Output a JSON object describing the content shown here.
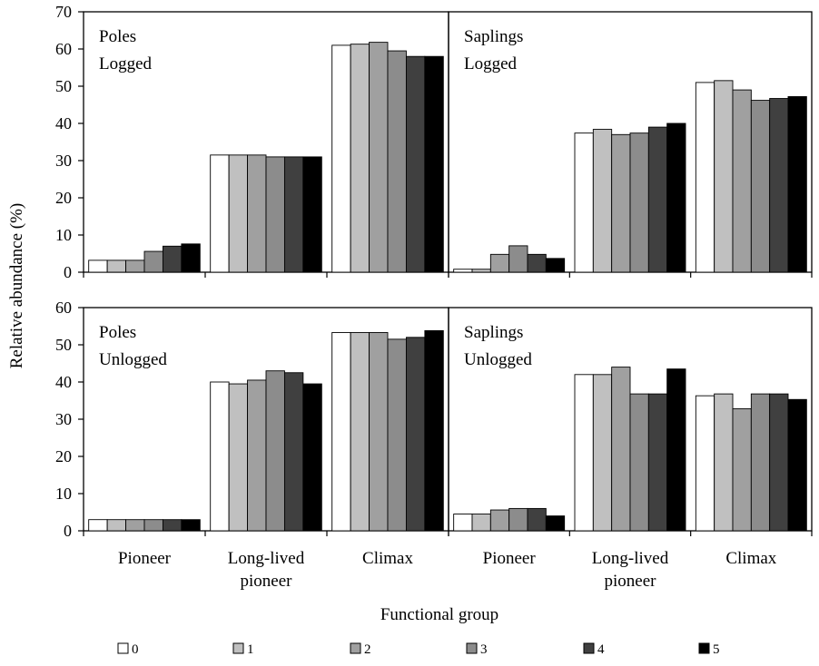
{
  "figure": {
    "ylabel": "Relative abundance (%)",
    "xlabel": "Functional group",
    "legend_placement": "bottom"
  },
  "legend": {
    "entries": [
      {
        "label": "0",
        "color": "#ffffff"
      },
      {
        "label": "1",
        "color": "#c0c0c0"
      },
      {
        "label": "2",
        "color": "#a0a0a0"
      },
      {
        "label": "3",
        "color": "#8c8c8c"
      },
      {
        "label": "4",
        "color": "#404040"
      },
      {
        "label": "5",
        "color": "#000000"
      }
    ]
  },
  "chart_data": [
    {
      "type": "bar",
      "panel_label_1": "Poles",
      "panel_label_2": "Logged",
      "categories": [
        "Pioneer",
        "Long-lived pioneer",
        "Climax"
      ],
      "ylim": [
        0,
        70
      ],
      "yticks": [
        "0",
        "10",
        "20",
        "30",
        "40",
        "50",
        "60",
        "70"
      ],
      "series": [
        {
          "name": "0",
          "values": [
            3.2,
            31.5,
            61.0
          ]
        },
        {
          "name": "1",
          "values": [
            3.2,
            31.5,
            61.3
          ]
        },
        {
          "name": "2",
          "values": [
            3.2,
            31.5,
            61.8
          ]
        },
        {
          "name": "3",
          "values": [
            5.6,
            31.0,
            59.5
          ]
        },
        {
          "name": "4",
          "values": [
            7.0,
            31.0,
            58.0
          ]
        },
        {
          "name": "5",
          "values": [
            7.6,
            31.0,
            58.0
          ]
        }
      ]
    },
    {
      "type": "bar",
      "panel_label_1": "Saplings",
      "panel_label_2": "Logged",
      "categories": [
        "Pioneer",
        "Long-lived pioneer",
        "Climax"
      ],
      "ylim": [
        0,
        70
      ],
      "yticks": [
        "0",
        "10",
        "20",
        "30",
        "40",
        "50",
        "60",
        "70"
      ],
      "series": [
        {
          "name": "0",
          "values": [
            0.8,
            37.4,
            51.0
          ]
        },
        {
          "name": "1",
          "values": [
            0.8,
            38.4,
            51.5
          ]
        },
        {
          "name": "2",
          "values": [
            4.8,
            37.0,
            49.0
          ]
        },
        {
          "name": "3",
          "values": [
            7.1,
            37.4,
            46.2
          ]
        },
        {
          "name": "4",
          "values": [
            4.8,
            39.0,
            46.7
          ]
        },
        {
          "name": "5",
          "values": [
            3.7,
            40.0,
            47.2
          ]
        }
      ]
    },
    {
      "type": "bar",
      "panel_label_1": "Poles",
      "panel_label_2": "Unlogged",
      "categories": [
        "Pioneer",
        "Long-lived pioneer",
        "Climax"
      ],
      "ylim": [
        0,
        60
      ],
      "yticks": [
        "0",
        "10",
        "20",
        "30",
        "40",
        "50",
        "60"
      ],
      "series": [
        {
          "name": "0",
          "values": [
            3.0,
            40.0,
            53.3
          ]
        },
        {
          "name": "1",
          "values": [
            3.0,
            39.5,
            53.3
          ]
        },
        {
          "name": "2",
          "values": [
            3.0,
            40.5,
            53.3
          ]
        },
        {
          "name": "3",
          "values": [
            3.0,
            43.0,
            51.5
          ]
        },
        {
          "name": "4",
          "values": [
            3.0,
            42.5,
            52.0
          ]
        },
        {
          "name": "5",
          "values": [
            3.0,
            39.5,
            53.8
          ]
        }
      ]
    },
    {
      "type": "bar",
      "panel_label_1": "Saplings",
      "panel_label_2": "Unlogged",
      "categories": [
        "Pioneer",
        "Long-lived pioneer",
        "Climax"
      ],
      "ylim": [
        0,
        60
      ],
      "yticks": [
        "0",
        "10",
        "20",
        "30",
        "40",
        "50",
        "60"
      ],
      "series": [
        {
          "name": "0",
          "values": [
            4.5,
            42.0,
            36.3
          ]
        },
        {
          "name": "1",
          "values": [
            4.5,
            42.0,
            36.8
          ]
        },
        {
          "name": "2",
          "values": [
            5.6,
            44.0,
            32.8
          ]
        },
        {
          "name": "3",
          "values": [
            6.0,
            36.8,
            36.8
          ]
        },
        {
          "name": "4",
          "values": [
            6.0,
            36.8,
            36.8
          ]
        },
        {
          "name": "5",
          "values": [
            4.0,
            43.5,
            35.3
          ]
        }
      ]
    }
  ]
}
